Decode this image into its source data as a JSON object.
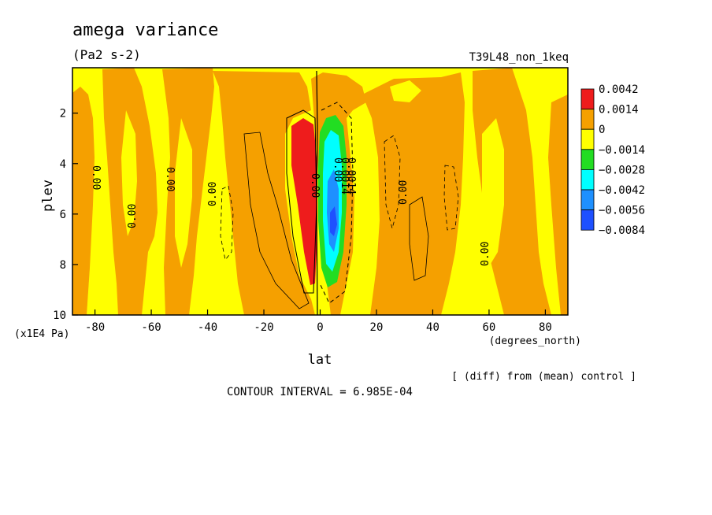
{
  "chart_data": {
    "type": "heatmap",
    "title": "amega variance",
    "units": "(Pa2 s-2)",
    "run_label": "T39L48_non_1keq",
    "xlabel": "lat",
    "x_units": "(degrees_north)",
    "ylabel": "plev",
    "y_units": "(x1E4 Pa)",
    "xlim": [
      -88,
      88
    ],
    "ylim": [
      10,
      0.2
    ],
    "x_ticks": [
      -80,
      -60,
      -40,
      -20,
      0,
      20,
      40,
      60,
      80
    ],
    "y_ticks": [
      2,
      4,
      6,
      8,
      10
    ],
    "legend_levels": [
      "0.0042",
      "0.0014",
      "0",
      "−0.0014",
      "−0.0028",
      "−0.0042",
      "−0.0056",
      "−0.0084"
    ],
    "legend_colors": [
      "#ee1c1c",
      "#f5a000",
      "#ffff00",
      "#22dd22",
      "#00ffff",
      "#1e90ff",
      "#1e50ff"
    ],
    "contour_interval": "CONTOUR INTERVAL = 6.985E-04",
    "note": "[ (diff) from (mean) control ]",
    "contour_labels": [
      "0.00",
      "0.00",
      "0.00",
      "0.00",
      "0.00",
      "0.00",
      "0.00",
      "0.00",
      "0.0014",
      "0.0014"
    ],
    "colors": {
      "red": "#ee1c1c",
      "orange": "#f5a000",
      "yellow": "#ffff00",
      "green": "#22dd22",
      "cyan": "#00ffff",
      "lightblue": "#1e90ff",
      "blue": "#1e50ff"
    }
  }
}
